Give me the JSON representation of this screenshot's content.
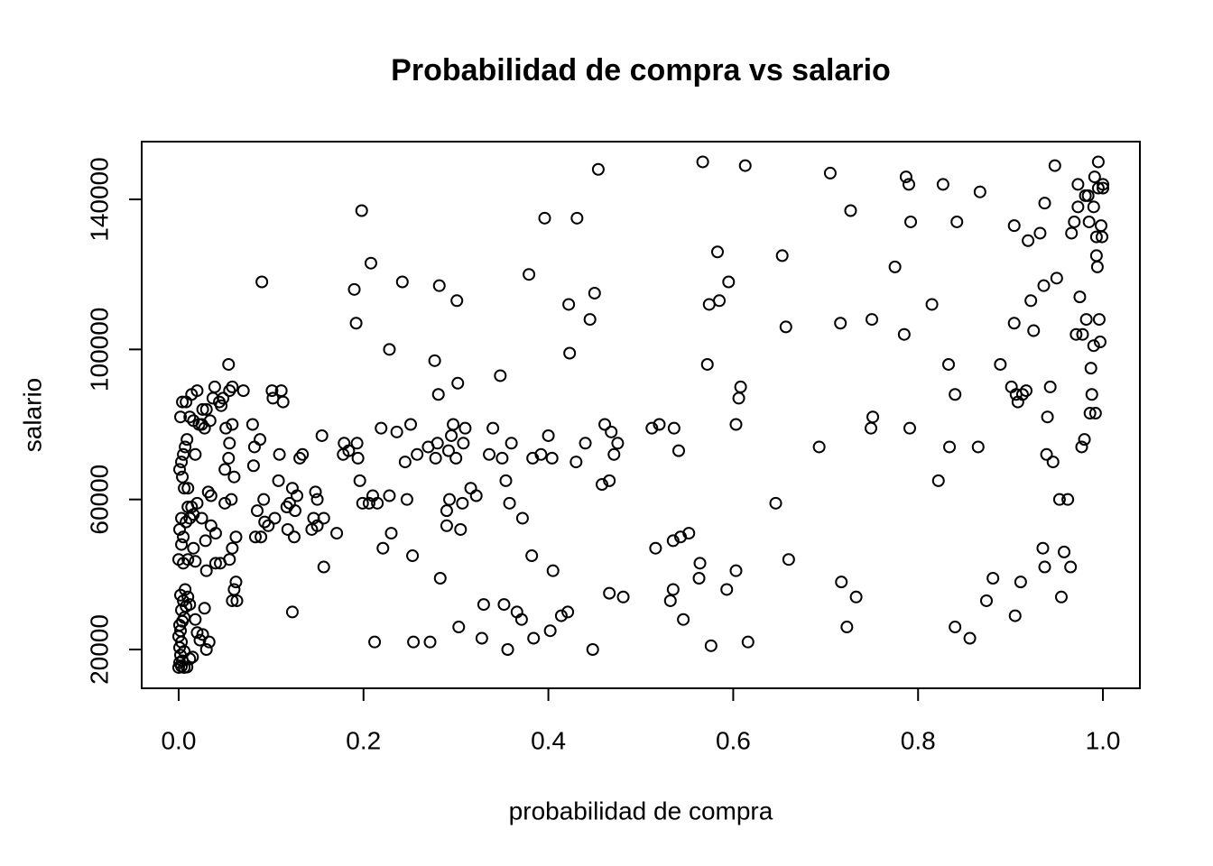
{
  "chart_data": {
    "type": "scatter",
    "title": "Probabilidad de compra vs salario",
    "x_label": "probabilidad de compra",
    "y_label": "salario",
    "xlim": [
      -0.04,
      1.04
    ],
    "ylim": [
      9658,
      155398
    ],
    "xticks": [
      {
        "value": 0,
        "label": "0.0"
      },
      0.2,
      0.4,
      0.6,
      0.8,
      {
        "value": 1,
        "label": "1.0"
      }
    ],
    "yticks": [
      20000,
      60000,
      100000,
      140000
    ],
    "color": "#000000",
    "x": [
      0.0,
      0.003,
      0.006,
      0.009,
      0.001,
      0.004,
      0.002,
      0.006,
      0.001,
      0.003,
      0.0,
      0.002,
      0.001,
      0.004,
      0.006,
      0.003,
      0.008,
      0.005,
      0.002,
      0.01,
      0.007,
      0.012,
      0.015,
      0.02,
      0.023,
      0.026,
      0.03,
      0.033,
      0.028,
      0.018,
      0.012,
      0.0,
      0.005,
      0.01,
      0.018,
      0.003,
      0.005,
      0.001,
      0.003,
      0.008,
      0.012,
      0.016,
      0.014,
      0.02,
      0.01,
      0.016,
      0.029,
      0.03,
      0.04,
      0.045,
      0.055,
      0.058,
      0.062,
      0.04,
      0.035,
      0.025,
      0.05,
      0.057,
      0.035,
      0.032,
      0.06,
      0.01,
      0.006,
      0.004,
      0.001,
      0.003,
      0.005,
      0.007,
      0.009,
      0.018,
      0.05,
      0.054,
      0.055,
      0.051,
      0.058,
      0.028,
      0.034,
      0.012,
      0.016,
      0.022,
      0.025,
      0.002,
      0.004,
      0.008,
      0.014,
      0.02,
      0.026,
      0.03,
      0.037,
      0.039,
      0.044,
      0.046,
      0.048,
      0.055,
      0.058,
      0.054,
      0.07,
      0.06,
      0.062,
      0.058,
      0.063,
      0.08,
      0.081,
      0.082,
      0.088,
      0.085,
      0.083,
      0.089,
      0.092,
      0.093,
      0.097,
      0.09,
      0.101,
      0.102,
      0.108,
      0.104,
      0.109,
      0.111,
      0.113,
      0.117,
      0.118,
      0.12,
      0.123,
      0.123,
      0.125,
      0.126,
      0.128,
      0.131,
      0.134,
      0.144,
      0.146,
      0.148,
      0.15,
      0.15,
      0.155,
      0.157,
      0.157,
      0.171,
      0.178,
      0.179,
      0.184,
      0.19,
      0.192,
      0.193,
      0.194,
      0.196,
      0.199,
      0.198,
      0.206,
      0.208,
      0.21,
      0.212,
      0.215,
      0.219,
      0.221,
      0.228,
      0.228,
      0.23,
      0.236,
      0.242,
      0.245,
      0.247,
      0.251,
      0.253,
      0.254,
      0.258,
      0.27,
      0.272,
      0.277,
      0.278,
      0.28,
      0.281,
      0.282,
      0.283,
      0.29,
      0.29,
      0.292,
      0.293,
      0.295,
      0.297,
      0.3,
      0.301,
      0.302,
      0.303,
      0.305,
      0.307,
      0.308,
      0.31,
      0.316,
      0.322,
      0.328,
      0.33,
      0.336,
      0.34,
      0.348,
      0.35,
      0.352,
      0.354,
      0.356,
      0.358,
      0.36,
      0.366,
      0.371,
      0.372,
      0.379,
      0.382,
      0.383,
      0.384,
      0.392,
      0.396,
      0.4,
      0.402,
      0.404,
      0.405,
      0.414,
      0.421,
      0.422,
      0.423,
      0.43,
      0.431,
      0.44,
      0.445,
      0.448,
      0.45,
      0.454,
      0.458,
      0.461,
      0.466,
      0.466,
      0.468,
      0.471,
      0.475,
      0.481,
      0.512,
      0.516,
      0.52,
      0.532,
      0.535,
      0.535,
      0.536,
      0.541,
      0.543,
      0.546,
      0.552,
      0.563,
      0.564,
      0.567,
      0.572,
      0.574,
      0.576,
      0.583,
      0.585,
      0.593,
      0.595,
      0.603,
      0.603,
      0.606,
      0.608,
      0.613,
      0.616,
      0.646,
      0.653,
      0.657,
      0.66,
      0.693,
      0.705,
      0.716,
      0.717,
      0.723,
      0.727,
      0.733,
      0.749,
      0.75,
      0.751,
      0.775,
      0.785,
      0.787,
      0.79,
      0.791,
      0.792,
      0.815,
      0.822,
      0.827,
      0.833,
      0.834,
      0.84,
      0.84,
      0.842,
      0.856,
      0.865,
      0.867,
      0.874,
      0.881,
      0.889,
      0.901,
      0.904,
      0.904,
      0.905,
      0.906,
      0.908,
      0.911,
      0.913,
      0.917,
      0.919,
      0.922,
      0.925,
      0.932,
      0.935,
      0.936,
      0.937,
      0.937,
      0.939,
      0.94,
      0.943,
      0.946,
      0.948,
      0.95,
      0.953,
      0.955,
      0.958,
      0.962,
      0.965,
      0.966,
      0.969,
      0.971,
      0.973,
      0.973,
      0.975,
      0.977,
      0.978,
      0.98,
      0.981,
      0.982,
      0.984,
      0.985,
      0.986,
      0.987,
      0.988,
      0.99,
      0.99,
      0.991,
      0.992,
      0.993,
      0.993,
      0.994,
      0.995,
      0.995,
      0.996,
      0.997,
      0.998,
      0.999,
      1.0,
      1.0
    ],
    "values": [
      15200,
      15500,
      15200,
      15300,
      16500,
      17000,
      18500,
      19500,
      20500,
      22000,
      23500,
      25000,
      26500,
      27500,
      28500,
      30500,
      31500,
      33000,
      34500,
      34000,
      36000,
      17500,
      18000,
      24500,
      22500,
      24000,
      20000,
      22000,
      31000,
      28000,
      32000,
      44000,
      43000,
      44000,
      43500,
      48000,
      50000,
      52000,
      55000,
      54000,
      55000,
      56000,
      58000,
      59000,
      58000,
      47000,
      49000,
      41000,
      43000,
      43000,
      44000,
      47000,
      50000,
      51000,
      53000,
      55000,
      59000,
      60000,
      61000,
      62000,
      66000,
      63000,
      63000,
      66000,
      68000,
      70000,
      72000,
      74000,
      76000,
      72000,
      68000,
      71000,
      75000,
      79000,
      80000,
      79000,
      81000,
      82000,
      81000,
      80000,
      80000,
      82000,
      86000,
      86000,
      88000,
      89000,
      84000,
      84000,
      87000,
      90000,
      86000,
      85000,
      87000,
      89000,
      90000,
      96000,
      89000,
      36000,
      38000,
      33000,
      33000,
      80000,
      69000,
      74000,
      76000,
      57000,
      50000,
      50000,
      60000,
      54000,
      53000,
      118000,
      89000,
      87000,
      65000,
      55000,
      72000,
      89000,
      86000,
      58000,
      52000,
      59000,
      63000,
      30000,
      50000,
      57000,
      61000,
      71000,
      72000,
      52000,
      55000,
      62000,
      53000,
      60000,
      77000,
      55000,
      42000,
      51000,
      72000,
      75000,
      73000,
      116000,
      107000,
      75000,
      71000,
      65000,
      59000,
      137000,
      59000,
      123000,
      61000,
      22000,
      59000,
      79000,
      47000,
      100000,
      61000,
      51000,
      78000,
      118000,
      70000,
      60000,
      80000,
      45000,
      22000,
      72000,
      74000,
      22000,
      97000,
      71000,
      75000,
      88000,
      117000,
      39000,
      53000,
      57000,
      73000,
      60000,
      77000,
      80000,
      71000,
      113000,
      91000,
      26000,
      52000,
      59000,
      75000,
      79000,
      63000,
      61000,
      23000,
      32000,
      72000,
      79000,
      93000,
      71000,
      32000,
      65000,
      20000,
      59000,
      75000,
      30000,
      28000,
      55000,
      120000,
      45000,
      71000,
      23000,
      72000,
      135000,
      77000,
      25000,
      71000,
      41000,
      29000,
      30000,
      112000,
      99000,
      70000,
      135000,
      75000,
      108000,
      20000,
      115000,
      148000,
      64000,
      80000,
      65000,
      35000,
      78000,
      72000,
      75000,
      34000,
      79000,
      47000,
      80000,
      33000,
      36000,
      49000,
      79000,
      73000,
      50000,
      28000,
      51000,
      39000,
      43000,
      150000,
      96000,
      112000,
      21000,
      126000,
      113000,
      36000,
      118000,
      41000,
      80000,
      87000,
      90000,
      149000,
      22000,
      59000,
      125000,
      106000,
      44000,
      74000,
      147000,
      107000,
      38000,
      26000,
      137000,
      34000,
      79000,
      108000,
      82000,
      122000,
      104000,
      146000,
      144000,
      79000,
      134000,
      112000,
      65000,
      144000,
      96000,
      74000,
      88000,
      26000,
      134000,
      23000,
      74000,
      142000,
      33000,
      39000,
      96000,
      90000,
      107000,
      133000,
      29000,
      88000,
      86000,
      38000,
      88000,
      89000,
      129000,
      113000,
      105000,
      131000,
      47000,
      117000,
      139000,
      42000,
      72000,
      82000,
      90000,
      70000,
      149000,
      119000,
      60000,
      34000,
      46000,
      60000,
      42000,
      131000,
      134000,
      104000,
      138000,
      144000,
      114000,
      74000,
      104000,
      76000,
      141000,
      108000,
      141000,
      134000,
      83000,
      95000,
      88000,
      101000,
      138000,
      146000,
      83000,
      130000,
      125000,
      122000,
      143000,
      150000,
      108000,
      102000,
      133000,
      130000,
      144000,
      143000
    ]
  }
}
